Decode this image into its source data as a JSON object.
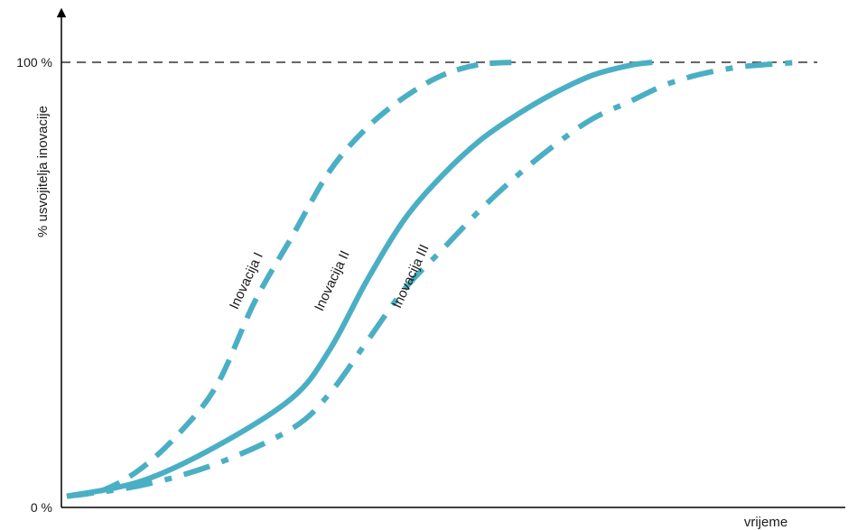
{
  "chart_data": {
    "type": "line",
    "title": "",
    "xlabel": "vrijeme",
    "ylabel": "% usvojitelja inovacije",
    "ylim": [
      0,
      100
    ],
    "xlim": [
      0,
      100
    ],
    "yticks": [
      {
        "value": 0,
        "label": "0 %"
      },
      {
        "value": 100,
        "label": "100 %"
      }
    ],
    "reference_line": {
      "y": 100,
      "style": "dashed",
      "color": "#333333"
    },
    "line_color": "#4aafc4",
    "series": [
      {
        "name": "Inovacija I",
        "style": "dashed",
        "x": [
          0,
          5,
          10,
          15,
          20,
          25,
          30,
          35,
          40,
          45,
          50,
          55,
          60
        ],
        "y": [
          0.5,
          2,
          7,
          15,
          26,
          45,
          60,
          75,
          85,
          92,
          97,
          99.5,
          100
        ]
      },
      {
        "name": "Inovacija II",
        "style": "solid",
        "x": [
          0,
          10,
          20,
          30,
          35,
          40,
          45,
          50,
          55,
          60,
          65,
          70,
          75,
          78
        ],
        "y": [
          0.5,
          4,
          12,
          23,
          34,
          50,
          64,
          74,
          82,
          88,
          93,
          97,
          99.3,
          100
        ]
      },
      {
        "name": "Inovacija III",
        "style": "dashdot",
        "x": [
          0,
          10,
          20,
          30,
          35,
          40,
          45,
          50,
          55,
          60,
          65,
          70,
          75,
          80,
          85,
          90,
          95,
          98
        ],
        "y": [
          0.5,
          3,
          8,
          16,
          24,
          36,
          48,
          57,
          66,
          74,
          81,
          87,
          91,
          95,
          97.5,
          99,
          99.7,
          100
        ]
      }
    ],
    "annotations": [
      {
        "text": "Inovacija I",
        "series": 0
      },
      {
        "text": "Inovacija II",
        "series": 1
      },
      {
        "text": "Inovacija III",
        "series": 2
      }
    ]
  }
}
